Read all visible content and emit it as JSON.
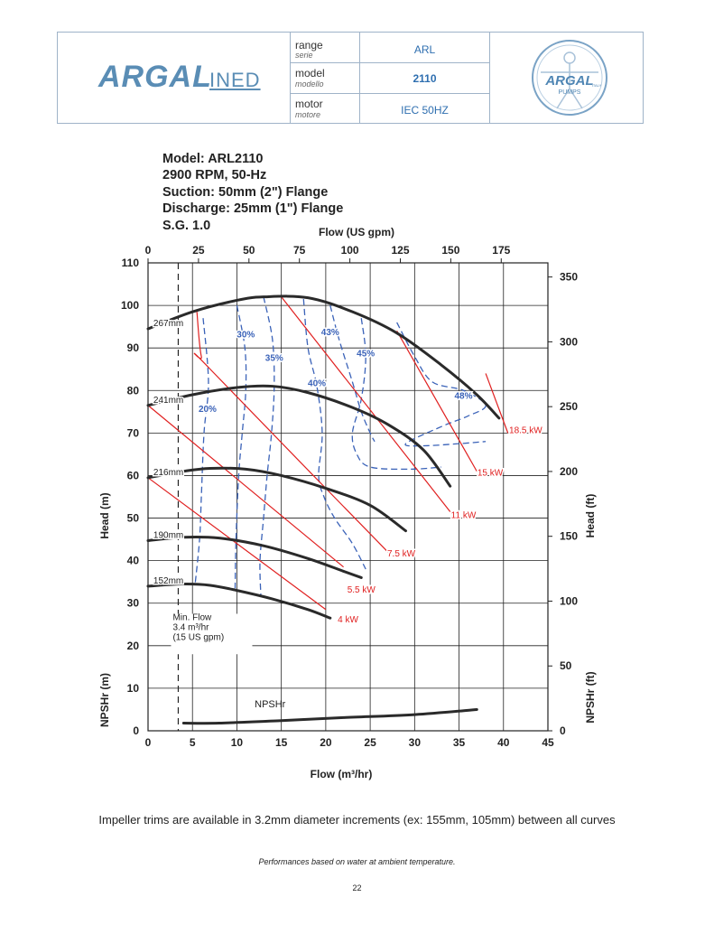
{
  "header": {
    "logo_text": "ARGAL",
    "logo_suffix": "INED",
    "range_label": "range",
    "range_sub": "serie",
    "range_value": "ARL",
    "model_label": "model",
    "model_sub": "modello",
    "model_value": "2110",
    "motor_label": "motor",
    "motor_sub": "motore",
    "motor_value": "IEC 50HZ",
    "badge_text": "ARGAL",
    "badge_sub": "PUMPS",
    "badge_country": "ITALY"
  },
  "info": {
    "model": "Model: ARL2110",
    "rpm": "2900 RPM, 50-Hz",
    "suction": "Suction: 50mm (2\") Flange",
    "discharge": "Discharge: 25mm (1\") Flange",
    "sg": "S.G. 1.0"
  },
  "chart_data": {
    "type": "line",
    "xlabel": "Flow (m³/hr)",
    "x2label": "Flow (US gpm)",
    "ylabel": "Head (m)",
    "y2label": "Head (ft)",
    "ylabel_npsh": "NPSHr (m)",
    "y2label_npsh": "NPSHr (ft)",
    "xlim": [
      0,
      45
    ],
    "ylim": [
      0,
      110
    ],
    "x_ticks": [
      0,
      5,
      10,
      15,
      20,
      25,
      30,
      35,
      40,
      45
    ],
    "y_ticks": [
      0,
      10,
      20,
      30,
      40,
      50,
      60,
      70,
      80,
      90,
      100,
      110
    ],
    "gpm_ticks": [
      0,
      25,
      50,
      75,
      100,
      125,
      150,
      175
    ],
    "ft_ticks": [
      0,
      50,
      100,
      150,
      200,
      250,
      300,
      350
    ],
    "grid": true,
    "colors": {
      "head": "#2a2a2a",
      "power": "#e02020",
      "eff": "#3a62b8",
      "grid": "#222222"
    },
    "series": [
      {
        "name": "267mm",
        "kind": "head",
        "points": [
          [
            0,
            94.5
          ],
          [
            5,
            98.5
          ],
          [
            10,
            101.2
          ],
          [
            13,
            102
          ],
          [
            18,
            101.8
          ],
          [
            23,
            98.5
          ],
          [
            28,
            93.5
          ],
          [
            33,
            86
          ],
          [
            37,
            79
          ],
          [
            39.5,
            73.5
          ]
        ]
      },
      {
        "name": "241mm",
        "kind": "head",
        "points": [
          [
            0,
            76.5
          ],
          [
            5,
            79
          ],
          [
            10,
            80.7
          ],
          [
            14,
            81
          ],
          [
            18,
            79.5
          ],
          [
            23,
            76
          ],
          [
            27,
            72
          ],
          [
            31,
            66
          ],
          [
            34,
            57.5
          ]
        ]
      },
      {
        "name": "216mm",
        "kind": "head",
        "points": [
          [
            0,
            59.5
          ],
          [
            4,
            61
          ],
          [
            7,
            61.7
          ],
          [
            11,
            61.5
          ],
          [
            15,
            60
          ],
          [
            20,
            57
          ],
          [
            25,
            53
          ],
          [
            29,
            47
          ]
        ]
      },
      {
        "name": "190mm",
        "kind": "head",
        "points": [
          [
            0,
            44.7
          ],
          [
            4,
            45.5
          ],
          [
            8,
            45.3
          ],
          [
            13,
            43.5
          ],
          [
            18,
            40.5
          ],
          [
            22,
            37.5
          ],
          [
            24,
            36
          ]
        ]
      },
      {
        "name": "152mm",
        "kind": "head",
        "points": [
          [
            0,
            34
          ],
          [
            4,
            34.5
          ],
          [
            7,
            34.2
          ],
          [
            10,
            33
          ],
          [
            14,
            31
          ],
          [
            18,
            28.5
          ],
          [
            20.5,
            26.5
          ]
        ]
      },
      {
        "name": "NPSHr",
        "kind": "npsh",
        "points": [
          [
            4,
            1.8
          ],
          [
            8,
            1.8
          ],
          [
            15,
            2.4
          ],
          [
            22,
            3.1
          ],
          [
            30,
            3.8
          ],
          [
            37,
            5
          ]
        ]
      },
      {
        "name": "4 kW",
        "kind": "power",
        "points": [
          [
            0,
            59.5
          ],
          [
            20,
            28.5
          ]
        ],
        "label_at": [
          22.5,
          25.5
        ]
      },
      {
        "name": "5.5 kW",
        "kind": "power",
        "points": [
          [
            0,
            76.5
          ],
          [
            22,
            38.5
          ]
        ],
        "label_at": [
          24,
          32.5
        ]
      },
      {
        "name": "7.5 kW",
        "kind": "power",
        "points": [
          [
            5.5,
            98.5
          ],
          [
            6,
            88
          ],
          [
            7,
            85
          ],
          [
            27,
            42
          ]
        ],
        "label_at": [
          28.5,
          41
        ]
      },
      {
        "name": "11 kW",
        "kind": "power",
        "points": [
          [
            15,
            102
          ],
          [
            34,
            51.5
          ]
        ],
        "label_at": [
          35.5,
          50
        ]
      },
      {
        "name": "15 kW",
        "kind": "power",
        "points": [
          [
            28,
            94
          ],
          [
            37,
            61
          ]
        ],
        "label_at": [
          38.5,
          60
        ]
      },
      {
        "name": "18.5 kW",
        "kind": "power",
        "points": [
          [
            38,
            84
          ],
          [
            40.5,
            70
          ]
        ],
        "label_at": [
          42.5,
          70
        ]
      },
      {
        "name": "20%",
        "kind": "eff",
        "points": [
          [
            6.2,
            97
          ],
          [
            6.8,
            82
          ],
          [
            6.3,
            70
          ],
          [
            6,
            55
          ],
          [
            5.8,
            45
          ],
          [
            5.3,
            34.5
          ]
        ],
        "label_at": [
          6.7,
          75
        ]
      },
      {
        "name": "30%",
        "kind": "eff",
        "points": [
          [
            10,
            100
          ],
          [
            10.9,
            90
          ],
          [
            11,
            80
          ],
          [
            10.6,
            70
          ],
          [
            10.2,
            60
          ],
          [
            9.9,
            45
          ],
          [
            9.8,
            33.5
          ]
        ],
        "label_at": [
          11,
          92.5
        ]
      },
      {
        "name": "35%",
        "kind": "eff",
        "points": [
          [
            13,
            102
          ],
          [
            14,
            92
          ],
          [
            14.2,
            81
          ],
          [
            13.9,
            70
          ],
          [
            13.4,
            60
          ],
          [
            13,
            50
          ],
          [
            12.6,
            40
          ],
          [
            12.7,
            31.5
          ]
        ],
        "label_at": [
          14.2,
          87
        ]
      },
      {
        "name": "40%",
        "kind": "eff",
        "points": [
          [
            17.5,
            101.5
          ],
          [
            18,
            90
          ],
          [
            19,
            81
          ],
          [
            19.6,
            70
          ],
          [
            19.2,
            60
          ],
          [
            19.8,
            55
          ],
          [
            21,
            50
          ],
          [
            23,
            44
          ],
          [
            24.5,
            38
          ]
        ],
        "label_at": [
          19,
          81
        ]
      },
      {
        "name": "43%",
        "kind": "eff",
        "points": [
          [
            20.5,
            100
          ],
          [
            21.5,
            92
          ],
          [
            23,
            82
          ],
          [
            24,
            75
          ],
          [
            25,
            70
          ],
          [
            25.5,
            68
          ]
        ],
        "label_at": [
          20.5,
          93
        ]
      },
      {
        "name": "45%",
        "kind": "eff",
        "points": [
          [
            24,
            97
          ],
          [
            24.5,
            88
          ],
          [
            24,
            78
          ],
          [
            23,
            70
          ],
          [
            23.5,
            65
          ],
          [
            25,
            62
          ],
          [
            29.5,
            61.5
          ],
          [
            33,
            62
          ]
        ],
        "label_at": [
          24.5,
          88
        ]
      },
      {
        "name": "48%",
        "kind": "eff",
        "points": [
          [
            28,
            96
          ],
          [
            30,
            88
          ],
          [
            32,
            82
          ],
          [
            35.5,
            80
          ],
          [
            38,
            76.5
          ],
          [
            36,
            74
          ],
          [
            33,
            71.5
          ],
          [
            29,
            67.5
          ],
          [
            31,
            67
          ],
          [
            35,
            67.5
          ],
          [
            38,
            68
          ]
        ],
        "label_at": [
          35.5,
          78
        ]
      }
    ],
    "min_flow": {
      "x": 3.4,
      "label_lines": [
        "Min. Flow",
        "3.4 m³/hr",
        "(15 US gpm)"
      ]
    }
  },
  "footer": {
    "note": "Impeller trims are available in 3.2mm diameter increments (ex: 155mm, 105mm) between all curves",
    "perf": "Performances based on water at ambient temperature.",
    "page": "22"
  }
}
